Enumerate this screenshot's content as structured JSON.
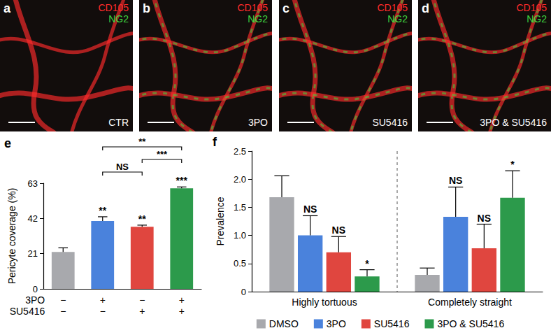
{
  "panels": [
    {
      "letter": "a",
      "channels": [
        {
          "text": "CD105",
          "color": "#ff2b2b"
        },
        {
          "text": "NG2",
          "color": "#3fd43f"
        }
      ],
      "condition": "CTR"
    },
    {
      "letter": "b",
      "channels": [
        {
          "text": "CD105",
          "color": "#ff2b2b"
        },
        {
          "text": "NG2",
          "color": "#3fd43f"
        }
      ],
      "condition": "3PO"
    },
    {
      "letter": "c",
      "channels": [
        {
          "text": "CD105",
          "color": "#ff2b2b"
        },
        {
          "text": "NG2",
          "color": "#3fd43f"
        }
      ],
      "condition": "SU5416"
    },
    {
      "letter": "d",
      "channels": [
        {
          "text": "CD105",
          "color": "#ff2b2b"
        },
        {
          "text": "NG2",
          "color": "#3fd43f"
        }
      ],
      "condition": "3PO & SU5416"
    }
  ],
  "chart_data": [
    {
      "type": "bar",
      "panel": "e",
      "ylabel": "Pericyte coverage (%)",
      "categories": [
        null,
        null,
        null,
        null
      ],
      "treatment_rows": [
        {
          "name": "3PO",
          "signs": [
            "−",
            "+",
            "−",
            "+"
          ]
        },
        {
          "name": "SU5416",
          "signs": [
            "−",
            "−",
            "+",
            "+"
          ]
        }
      ],
      "values": [
        22,
        40.5,
        37,
        60
      ],
      "errors": [
        2.5,
        2.5,
        1,
        0.8
      ],
      "colors": [
        "#a8a9ad",
        "#4a82dc",
        "#e0463f",
        "#2c9a4b"
      ],
      "significance": [
        null,
        "**",
        "**",
        "***"
      ],
      "comparisons": [
        {
          "from": 1,
          "to": 2,
          "label": "NS"
        },
        {
          "from": 2,
          "to": 3,
          "label": "***"
        },
        {
          "from": 1,
          "to": 3,
          "label": "**"
        }
      ],
      "ylim": [
        0,
        63
      ],
      "yticks": [
        0,
        21,
        42,
        63
      ],
      "grid": false
    },
    {
      "type": "bar",
      "panel": "f",
      "ylabel": "Prevalence",
      "categories": [
        "Highly tortuous",
        "Completely straight"
      ],
      "series": [
        {
          "name": "DMSO",
          "color": "#a8a9ad",
          "values": [
            1.68,
            0.3
          ],
          "errors": [
            0.38,
            0.12
          ],
          "significance": [
            null,
            null
          ]
        },
        {
          "name": "3PO",
          "color": "#4a82dc",
          "values": [
            1.0,
            1.33
          ],
          "errors": [
            0.35,
            0.53
          ],
          "significance": [
            "NS",
            "NS"
          ]
        },
        {
          "name": "SU5416",
          "color": "#e0463f",
          "values": [
            0.7,
            0.77
          ],
          "errors": [
            0.28,
            0.43
          ],
          "significance": [
            "NS",
            "NS"
          ]
        },
        {
          "name": "3PO & SU5416",
          "color": "#2c9a4b",
          "values": [
            0.27,
            1.67
          ],
          "errors": [
            0.12,
            0.48
          ],
          "significance": [
            "*",
            "*"
          ]
        }
      ],
      "ylim": [
        0,
        2.5
      ],
      "yticks": [
        0,
        0.5,
        {
          "value": 1,
          "label": "1.0"
        },
        1.5,
        {
          "value": 2,
          "label": "2.0"
        },
        2.5
      ],
      "legend": "bottom",
      "grid": false
    }
  ]
}
